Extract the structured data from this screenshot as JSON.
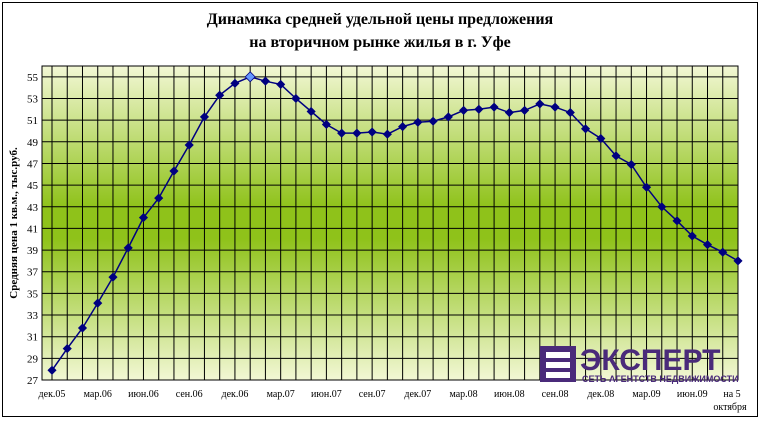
{
  "chart_data": {
    "type": "line",
    "title": [
      "Динамика средней удельной цены предложения",
      "на вторичном рынке жилья в г. Уфе"
    ],
    "ylabel": "Средняя цена 1 кв.м., тыс.руб.",
    "xlabel": "",
    "ylim": [
      27,
      56
    ],
    "yticks": [
      27,
      29,
      31,
      33,
      35,
      37,
      39,
      41,
      43,
      45,
      47,
      49,
      51,
      53,
      55
    ],
    "grid": true,
    "x_tick_labels": [
      "дек.05",
      "мар.06",
      "июн.06",
      "сен.06",
      "дек.06",
      "мар.07",
      "июн.07",
      "сен.07",
      "дек.07",
      "мар.08",
      "июн.08",
      "сен.08",
      "дек.08",
      "мар.09",
      "июн.09",
      "на 5 октября"
    ],
    "series": [
      {
        "values": [
          27.9,
          29.9,
          31.8,
          34.1,
          36.5,
          39.2,
          42.0,
          43.8,
          46.3,
          48.7,
          51.3,
          53.3,
          54.4,
          55.0,
          54.6,
          54.3,
          53.0,
          51.8,
          50.6,
          49.8,
          49.8,
          49.9,
          49.7,
          50.4,
          50.8,
          50.9,
          51.3,
          51.9,
          52.0,
          52.2,
          51.7,
          51.9,
          52.5,
          52.2,
          51.7,
          50.2,
          49.3,
          47.7,
          46.9,
          44.8,
          43.0,
          41.7,
          40.3,
          39.5,
          38.8,
          38.0
        ],
        "highlight_index": 13,
        "color": "#000080",
        "highlight_color": "#6699ff"
      }
    ]
  },
  "logo": {
    "word": "ЭКСПЕРТ",
    "subtitle": "СЕТЬ АГЕНТСТВ НЕДВИЖИМОСТИ",
    "color": "#4a2a7a"
  }
}
